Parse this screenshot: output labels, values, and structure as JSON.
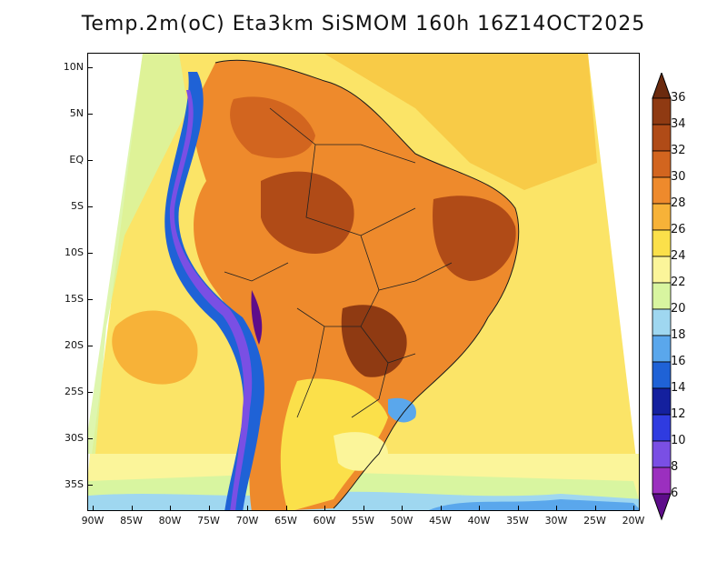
{
  "title": "Temp.2m(oC) Eta3km SiSMOM 160h 16Z14OCT2025",
  "map": {
    "lat_labels": [
      "10N",
      "5N",
      "EQ",
      "5S",
      "10S",
      "15S",
      "20S",
      "25S",
      "30S",
      "35S"
    ],
    "lon_labels": [
      "90W",
      "85W",
      "80W",
      "75W",
      "70W",
      "65W",
      "60W",
      "55W",
      "50W",
      "45W",
      "40W",
      "35W",
      "30W",
      "25W",
      "20W"
    ]
  },
  "colorbar": {
    "labels": [
      "36",
      "34",
      "32",
      "30",
      "28",
      "26",
      "24",
      "22",
      "20",
      "18",
      "16",
      "14",
      "12",
      "10",
      "8",
      "6"
    ],
    "colors": [
      "#6b2a0e",
      "#8f3a12",
      "#b04b17",
      "#d2651f",
      "#ee8a2c",
      "#f7b238",
      "#fbe04a",
      "#fbf59a",
      "#d8f5a0",
      "#9fd7f0",
      "#5aa7ec",
      "#1f62d6",
      "#14209e",
      "#2f3be0",
      "#7a4fe4",
      "#9b2fbf",
      "#5e0d8a"
    ]
  }
}
